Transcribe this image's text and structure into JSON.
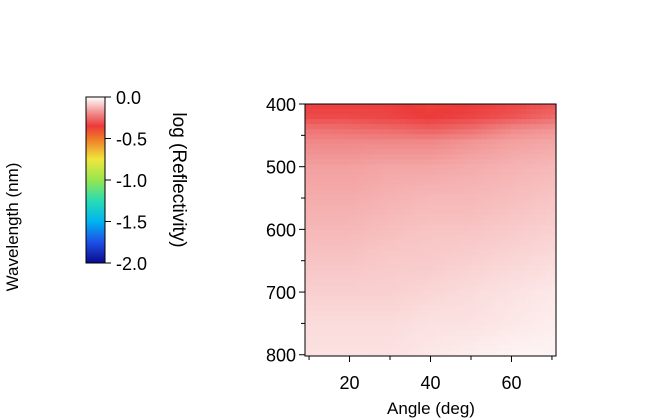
{
  "chart_data": {
    "type": "heatmap",
    "title": "",
    "xlabel": "Angle (deg)",
    "ylabel": "Wavelength (nm)",
    "xlim": [
      9,
      71
    ],
    "ylim": [
      400,
      802
    ],
    "y_inverted": true,
    "x_ticks": [
      20,
      40,
      60
    ],
    "y_ticks": [
      400,
      500,
      600,
      700,
      800
    ],
    "colorbar": {
      "label": "log (Reflectivity)",
      "range": [
        -2.0,
        0.0
      ],
      "ticks": [
        "0.0",
        "-0.5",
        "-1.0",
        "-1.5",
        "-2.0"
      ],
      "colormap": [
        {
          "value": -2.0,
          "color": "#0a0a8c"
        },
        {
          "value": -1.75,
          "color": "#1e50e6"
        },
        {
          "value": -1.5,
          "color": "#00b4f0"
        },
        {
          "value": -1.25,
          "color": "#28dcb4"
        },
        {
          "value": -1.0,
          "color": "#96e650"
        },
        {
          "value": -0.75,
          "color": "#f0e63c"
        },
        {
          "value": -0.5,
          "color": "#f07828"
        },
        {
          "value": -0.35,
          "color": "#ec3a3a"
        },
        {
          "value": -0.2,
          "color": "#f08888"
        },
        {
          "value": -0.1,
          "color": "#f8c4c4"
        },
        {
          "value": 0.0,
          "color": "#ffffff"
        }
      ]
    },
    "angles": [
      10,
      20,
      30,
      40,
      50,
      60,
      70
    ],
    "wavelengths": [
      400,
      420,
      440,
      460,
      500,
      550,
      600,
      650,
      700,
      750,
      800
    ],
    "values": [
      [
        -0.34,
        -0.34,
        -0.34,
        -0.37,
        -0.35,
        -0.33,
        -0.3
      ],
      [
        -0.32,
        -0.32,
        -0.33,
        -0.35,
        -0.33,
        -0.3,
        -0.26
      ],
      [
        -0.24,
        -0.25,
        -0.26,
        -0.28,
        -0.25,
        -0.2,
        -0.18
      ],
      [
        -0.2,
        -0.2,
        -0.2,
        -0.2,
        -0.18,
        -0.16,
        -0.15
      ],
      [
        -0.16,
        -0.16,
        -0.15,
        -0.15,
        -0.14,
        -0.13,
        -0.12
      ],
      [
        -0.14,
        -0.14,
        -0.13,
        -0.12,
        -0.12,
        -0.11,
        -0.1
      ],
      [
        -0.12,
        -0.12,
        -0.11,
        -0.1,
        -0.1,
        -0.09,
        -0.08
      ],
      [
        -0.1,
        -0.1,
        -0.09,
        -0.09,
        -0.08,
        -0.07,
        -0.06
      ],
      [
        -0.08,
        -0.08,
        -0.08,
        -0.07,
        -0.06,
        -0.05,
        -0.04
      ],
      [
        -0.06,
        -0.06,
        -0.06,
        -0.05,
        -0.05,
        -0.04,
        -0.03
      ],
      [
        -0.05,
        -0.05,
        -0.05,
        -0.04,
        -0.03,
        -0.02,
        -0.02
      ]
    ]
  }
}
